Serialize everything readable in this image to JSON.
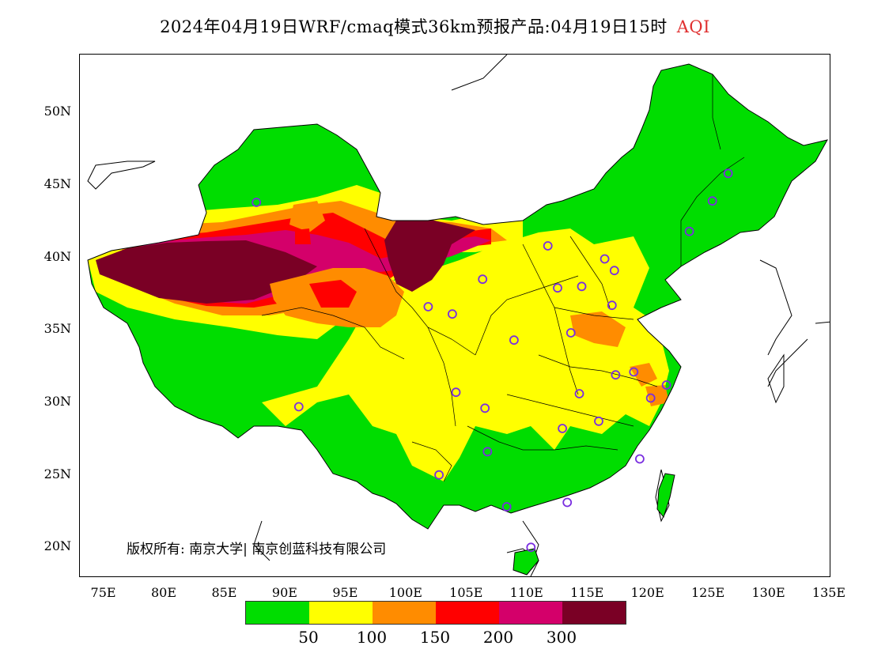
{
  "title": {
    "prefix": "2024年04月19日WRF/cmaq模式36km预报产品:04月19日15时",
    "variable": "AQI"
  },
  "axes": {
    "lat_labels": [
      "50N",
      "45N",
      "40N",
      "35N",
      "30N",
      "25N",
      "20N"
    ],
    "lat_values": [
      50,
      45,
      40,
      35,
      30,
      25,
      20
    ],
    "lon_labels": [
      "75E",
      "80E",
      "85E",
      "90E",
      "95E",
      "100E",
      "105E",
      "110E",
      "115E",
      "120E",
      "125E",
      "130E",
      "135E"
    ],
    "lon_values": [
      75,
      80,
      85,
      90,
      95,
      100,
      105,
      110,
      115,
      120,
      125,
      130,
      135
    ],
    "lon_range": [
      73,
      135
    ],
    "lat_range": [
      18,
      54
    ]
  },
  "copyright": "版权所有: 南京大学| 南京创蓝科技有限公司",
  "legend": {
    "colors": [
      "#00dd00",
      "#ffff00",
      "#ff8c00",
      "#ff0000",
      "#d4006a",
      "#7a0025"
    ],
    "labels": [
      "50",
      "100",
      "150",
      "200",
      "300"
    ]
  },
  "stations": [
    {
      "lon": 87.6,
      "lat": 43.8
    },
    {
      "lon": 91.1,
      "lat": 29.7
    },
    {
      "lon": 101.8,
      "lat": 36.6
    },
    {
      "lon": 103.8,
      "lat": 36.1
    },
    {
      "lon": 106.3,
      "lat": 38.5
    },
    {
      "lon": 111.7,
      "lat": 40.8
    },
    {
      "lon": 108.9,
      "lat": 34.3
    },
    {
      "lon": 104.1,
      "lat": 30.7
    },
    {
      "lon": 106.5,
      "lat": 29.6
    },
    {
      "lon": 106.7,
      "lat": 26.6
    },
    {
      "lon": 102.7,
      "lat": 25.0
    },
    {
      "lon": 108.3,
      "lat": 22.8
    },
    {
      "lon": 110.3,
      "lat": 20.0
    },
    {
      "lon": 113.3,
      "lat": 23.1
    },
    {
      "lon": 112.9,
      "lat": 28.2
    },
    {
      "lon": 114.3,
      "lat": 30.6
    },
    {
      "lon": 115.9,
      "lat": 28.7
    },
    {
      "lon": 117.3,
      "lat": 31.9
    },
    {
      "lon": 113.6,
      "lat": 34.8
    },
    {
      "lon": 112.5,
      "lat": 37.9
    },
    {
      "lon": 114.5,
      "lat": 38.0
    },
    {
      "lon": 116.4,
      "lat": 39.9
    },
    {
      "lon": 117.2,
      "lat": 39.1
    },
    {
      "lon": 117.0,
      "lat": 36.7
    },
    {
      "lon": 118.8,
      "lat": 32.1
    },
    {
      "lon": 120.2,
      "lat": 30.3
    },
    {
      "lon": 121.5,
      "lat": 31.2
    },
    {
      "lon": 119.3,
      "lat": 26.1
    },
    {
      "lon": 123.4,
      "lat": 41.8
    },
    {
      "lon": 125.3,
      "lat": 43.9
    },
    {
      "lon": 126.6,
      "lat": 45.8
    }
  ]
}
